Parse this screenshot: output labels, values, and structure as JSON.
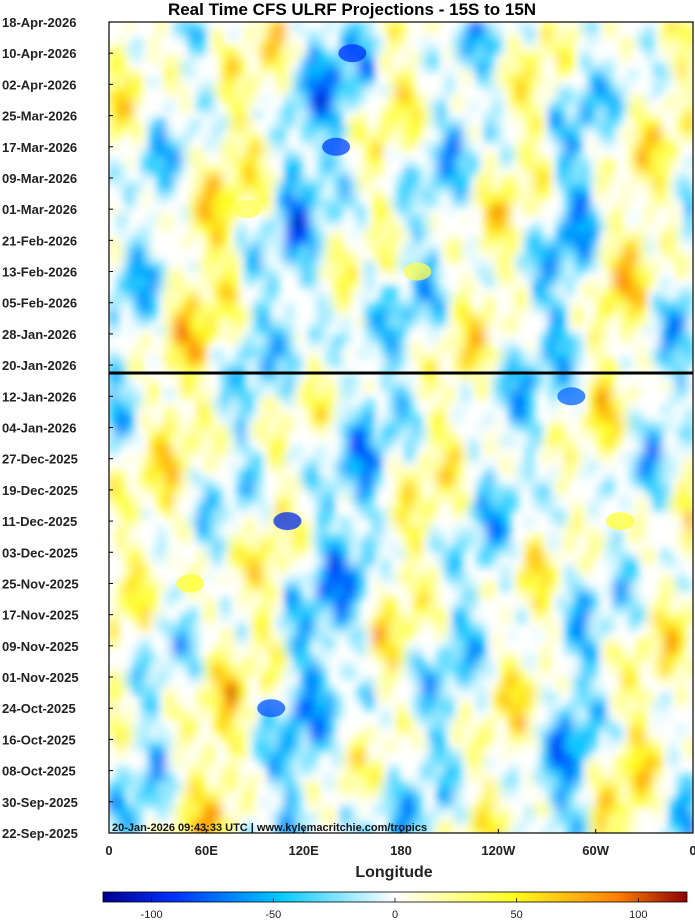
{
  "chart_data": {
    "type": "heatmap",
    "title": "Real Time CFS ULRF Projections - 15S to 15N",
    "xlabel": "Longitude",
    "ylabel": "",
    "x_ticks": [
      "0",
      "60E",
      "120E",
      "180",
      "120W",
      "60W",
      "0"
    ],
    "y_ticks": [
      "18-Apr-2026",
      "10-Apr-2026",
      "02-Apr-2026",
      "25-Mar-2026",
      "17-Mar-2026",
      "09-Mar-2026",
      "01-Mar-2026",
      "21-Feb-2026",
      "13-Feb-2026",
      "05-Feb-2026",
      "28-Jan-2026",
      "20-Jan-2026",
      "12-Jan-2026",
      "04-Jan-2026",
      "27-Dec-2025",
      "19-Dec-2025",
      "11-Dec-2025",
      "03-Dec-2025",
      "25-Nov-2025",
      "17-Nov-2025",
      "09-Nov-2025",
      "01-Nov-2025",
      "24-Oct-2025",
      "16-Oct-2025",
      "08-Oct-2025",
      "30-Sep-2025",
      "22-Sep-2025"
    ],
    "y_range": [
      "22-Sep-2025",
      "18-Apr-2026"
    ],
    "x_range_deg_east": [
      0,
      360
    ],
    "reference_date": "20-Jan-2026",
    "colorbar": {
      "range": [
        -120,
        120
      ],
      "ticks": [
        "-100",
        "-50",
        "0",
        "50",
        "100"
      ],
      "colors": [
        "#00008f",
        "#0030ff",
        "#00c8ff",
        "#ffffff",
        "#ffff20",
        "#ff8000",
        "#900000"
      ]
    },
    "stamp": "20-Jan-2026 09:43:33 UTC | www.kylemacritchie.com/tropics",
    "features": [
      {
        "lon": 150,
        "date": "10-Apr-2026",
        "value": -90
      },
      {
        "lon": 140,
        "date": "17-Mar-2026",
        "value": -85
      },
      {
        "lon": 110,
        "date": "11-Dec-2025",
        "value": -95
      },
      {
        "lon": 100,
        "date": "24-Oct-2025",
        "value": -80
      },
      {
        "lon": 285,
        "date": "12-Jan-2026",
        "value": -75
      },
      {
        "lon": 315,
        "date": "11-Dec-2025",
        "value": 45
      },
      {
        "lon": 50,
        "date": "25-Nov-2025",
        "value": 45
      },
      {
        "lon": 190,
        "date": "13-Feb-2026",
        "value": 40
      },
      {
        "lon": 85,
        "date": "01-Mar-2026",
        "value": 40
      }
    ]
  }
}
